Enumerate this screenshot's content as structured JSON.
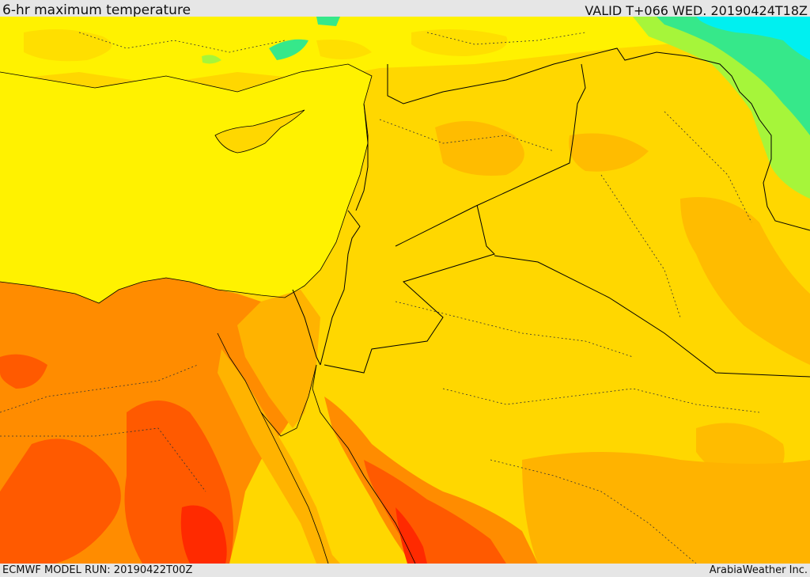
{
  "header": {
    "title": "6-hr maximum temperature",
    "valid": "VALID T+066 WED. 20190424T18Z"
  },
  "footer": {
    "model_run": "ECMWF MODEL RUN: 20190422T00Z",
    "credit": "ArabiaWeather Inc."
  },
  "colors": {
    "sea": "#fff200",
    "land_warm": "#ffd700",
    "land_warmer": "#ffb300",
    "hot": "#ff8c00",
    "very_hot": "#ff5a00",
    "hottest": "#ff2a00",
    "cool_green": "#a6f53a",
    "cooler_green": "#36e88a",
    "coolest_cyan": "#00f0f0",
    "boundary": "#000000"
  }
}
